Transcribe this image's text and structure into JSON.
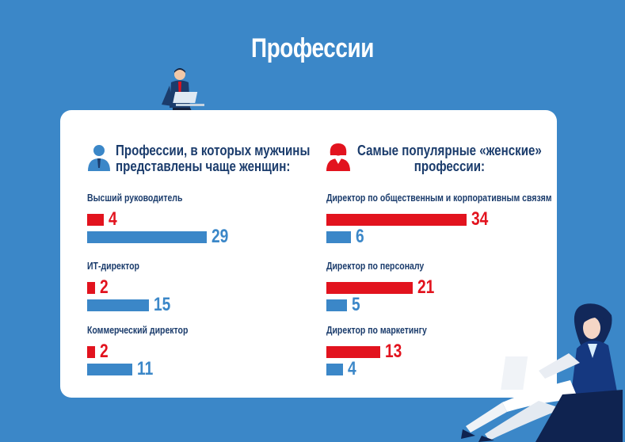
{
  "title": "Профессии",
  "colors": {
    "background": "#3b87c8",
    "red": "#e2131e",
    "blue": "#3b87c8",
    "navy": "#1b3c6c"
  },
  "icons": [
    "man-icon",
    "woman-icon",
    "businessman-illustration",
    "businesswoman-illustration"
  ],
  "chart_data": [
    {
      "type": "bar",
      "orientation": "horizontal",
      "title": "Профессии, в которых мужчины представлены чаще женщин:",
      "title_lines": [
        "Профессии, в которых мужчины",
        "представлены чаще женщин:"
      ],
      "categories": [
        "Высший руководитель",
        "ИТ-директор",
        "Коммерческий директор"
      ],
      "series": [
        {
          "color": "#e2131e",
          "values": [
            4,
            2,
            2
          ]
        },
        {
          "color": "#3b87c8",
          "values": [
            29,
            15,
            11
          ]
        }
      ]
    },
    {
      "type": "bar",
      "orientation": "horizontal",
      "title": "Самые популярные «женские» профессии:",
      "title_lines": [
        "Самые популярные «женские»",
        "профессии:"
      ],
      "categories": [
        "Директор по общественным и корпоративным связям",
        "Директор по персоналу",
        "Директор по маркетингу"
      ],
      "series": [
        {
          "color": "#e2131e",
          "values": [
            34,
            21,
            13
          ]
        },
        {
          "color": "#3b87c8",
          "values": [
            6,
            5,
            4
          ]
        }
      ]
    }
  ]
}
